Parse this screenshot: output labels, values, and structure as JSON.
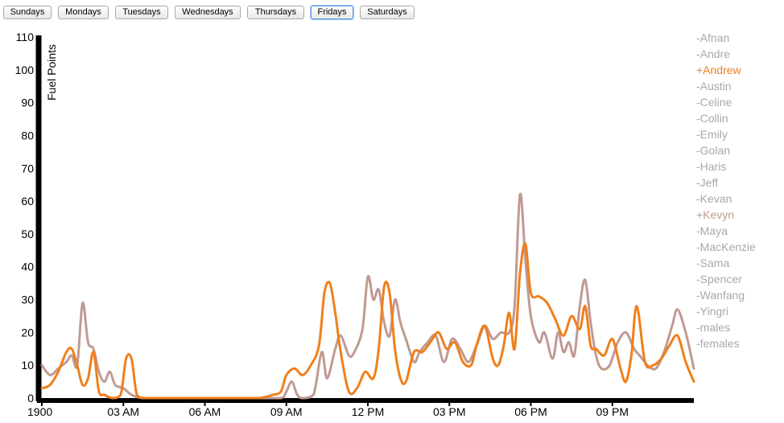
{
  "day_buttons": [
    "Sundays",
    "Mondays",
    "Tuesdays",
    "Wednesdays",
    "Thursdays",
    "Fridays",
    "Saturdays"
  ],
  "active_day": "Fridays",
  "legend": [
    {
      "label": "-Afnan",
      "selected": false
    },
    {
      "label": "-Andre",
      "selected": false
    },
    {
      "label": "+Andrew",
      "selected": true,
      "color": "#f07f1c"
    },
    {
      "label": "-Austin",
      "selected": false
    },
    {
      "label": "-Celine",
      "selected": false
    },
    {
      "label": "-Collin",
      "selected": false
    },
    {
      "label": "-Emily",
      "selected": false
    },
    {
      "label": "-Golan",
      "selected": false
    },
    {
      "label": "-Haris",
      "selected": false
    },
    {
      "label": "-Jeff",
      "selected": false
    },
    {
      "label": "-Kevan",
      "selected": false
    },
    {
      "label": "+Kevyn",
      "selected": true,
      "color": "#c09a92"
    },
    {
      "label": "-Maya",
      "selected": false
    },
    {
      "label": "-MacKenzie",
      "selected": false
    },
    {
      "label": "-Sama",
      "selected": false
    },
    {
      "label": "-Spencer",
      "selected": false
    },
    {
      "label": "-Wanfang",
      "selected": false
    },
    {
      "label": "-Yingri",
      "selected": false
    },
    {
      "label": "-males",
      "selected": false
    },
    {
      "label": "-females",
      "selected": false
    }
  ],
  "chart_data": {
    "type": "line",
    "ylabel": "Fuel Points",
    "ylim": [
      0,
      110
    ],
    "yticks": [
      0,
      10,
      20,
      30,
      40,
      50,
      60,
      70,
      80,
      90,
      100,
      110
    ],
    "xlim": [
      0,
      24
    ],
    "xticks": [
      {
        "x": 0,
        "label": "1900"
      },
      {
        "x": 3,
        "label": "03 AM"
      },
      {
        "x": 6,
        "label": "06 AM"
      },
      {
        "x": 9,
        "label": "09 AM"
      },
      {
        "x": 12,
        "label": "12 PM"
      },
      {
        "x": 15,
        "label": "03 PM"
      },
      {
        "x": 18,
        "label": "06 PM"
      },
      {
        "x": 21,
        "label": "09 PM"
      }
    ],
    "series": [
      {
        "name": "Kevyn",
        "color": "#c09a92",
        "points": [
          [
            0,
            10
          ],
          [
            0.3,
            7
          ],
          [
            0.6,
            9
          ],
          [
            0.9,
            11
          ],
          [
            1.1,
            13
          ],
          [
            1.3,
            10
          ],
          [
            1.5,
            29
          ],
          [
            1.7,
            17
          ],
          [
            1.9,
            15
          ],
          [
            2.1,
            8
          ],
          [
            2.3,
            5
          ],
          [
            2.5,
            8
          ],
          [
            2.7,
            4
          ],
          [
            3.0,
            3
          ],
          [
            3.3,
            1
          ],
          [
            3.7,
            0
          ],
          [
            4.2,
            0
          ],
          [
            5,
            0
          ],
          [
            6,
            0
          ],
          [
            7,
            0
          ],
          [
            8,
            0
          ],
          [
            8.8,
            0
          ],
          [
            9.0,
            2
          ],
          [
            9.2,
            5
          ],
          [
            9.4,
            1
          ],
          [
            9.6,
            0
          ],
          [
            10.0,
            1
          ],
          [
            10.3,
            14
          ],
          [
            10.5,
            6
          ],
          [
            10.8,
            15
          ],
          [
            11.0,
            19
          ],
          [
            11.3,
            13
          ],
          [
            11.5,
            14
          ],
          [
            11.8,
            21
          ],
          [
            12.0,
            37
          ],
          [
            12.2,
            30
          ],
          [
            12.4,
            33
          ],
          [
            12.6,
            23
          ],
          [
            12.8,
            19
          ],
          [
            13.0,
            30
          ],
          [
            13.2,
            23
          ],
          [
            13.4,
            18
          ],
          [
            13.7,
            11
          ],
          [
            13.9,
            14
          ],
          [
            14.2,
            17
          ],
          [
            14.5,
            19
          ],
          [
            14.8,
            11
          ],
          [
            15.1,
            18
          ],
          [
            15.4,
            15
          ],
          [
            15.7,
            11
          ],
          [
            16.0,
            16
          ],
          [
            16.3,
            22
          ],
          [
            16.6,
            18
          ],
          [
            16.9,
            20
          ],
          [
            17.2,
            20
          ],
          [
            17.4,
            28
          ],
          [
            17.6,
            62
          ],
          [
            17.8,
            42
          ],
          [
            18.0,
            25
          ],
          [
            18.3,
            17
          ],
          [
            18.5,
            20
          ],
          [
            18.8,
            12
          ],
          [
            19.0,
            20
          ],
          [
            19.2,
            14
          ],
          [
            19.4,
            17
          ],
          [
            19.6,
            13
          ],
          [
            19.8,
            28
          ],
          [
            20.0,
            36
          ],
          [
            20.2,
            23
          ],
          [
            20.4,
            13
          ],
          [
            20.6,
            9
          ],
          [
            20.9,
            10
          ],
          [
            21.2,
            17
          ],
          [
            21.5,
            20
          ],
          [
            21.8,
            15
          ],
          [
            22.0,
            13
          ],
          [
            22.3,
            10
          ],
          [
            22.6,
            9
          ],
          [
            22.9,
            14
          ],
          [
            23.2,
            22
          ],
          [
            23.4,
            27
          ],
          [
            23.7,
            20
          ],
          [
            24.0,
            9
          ]
        ]
      },
      {
        "name": "Andrew",
        "color": "#f07f1c",
        "points": [
          [
            0,
            3
          ],
          [
            0.3,
            4
          ],
          [
            0.6,
            8
          ],
          [
            0.9,
            14
          ],
          [
            1.1,
            15
          ],
          [
            1.3,
            10
          ],
          [
            1.5,
            4
          ],
          [
            1.7,
            6
          ],
          [
            1.9,
            14
          ],
          [
            2.1,
            2
          ],
          [
            2.3,
            1
          ],
          [
            2.6,
            0
          ],
          [
            2.9,
            1
          ],
          [
            3.1,
            12
          ],
          [
            3.3,
            12
          ],
          [
            3.5,
            1
          ],
          [
            3.8,
            0
          ],
          [
            4.5,
            0
          ],
          [
            5,
            0
          ],
          [
            6,
            0
          ],
          [
            7,
            0
          ],
          [
            8,
            0
          ],
          [
            8.5,
            1
          ],
          [
            8.8,
            2
          ],
          [
            9.0,
            7
          ],
          [
            9.3,
            9
          ],
          [
            9.6,
            7
          ],
          [
            9.9,
            10
          ],
          [
            10.2,
            16
          ],
          [
            10.4,
            32
          ],
          [
            10.6,
            35
          ],
          [
            10.8,
            26
          ],
          [
            11.0,
            14
          ],
          [
            11.3,
            2
          ],
          [
            11.6,
            3
          ],
          [
            11.9,
            8
          ],
          [
            12.2,
            6
          ],
          [
            12.4,
            15
          ],
          [
            12.6,
            34
          ],
          [
            12.8,
            32
          ],
          [
            13.0,
            15
          ],
          [
            13.2,
            6
          ],
          [
            13.4,
            5
          ],
          [
            13.7,
            14
          ],
          [
            14.0,
            14
          ],
          [
            14.3,
            17
          ],
          [
            14.6,
            20
          ],
          [
            14.9,
            15
          ],
          [
            15.2,
            17
          ],
          [
            15.5,
            11
          ],
          [
            15.8,
            10
          ],
          [
            16.0,
            16
          ],
          [
            16.3,
            22
          ],
          [
            16.6,
            12
          ],
          [
            16.8,
            10
          ],
          [
            17.0,
            16
          ],
          [
            17.2,
            26
          ],
          [
            17.4,
            15
          ],
          [
            17.6,
            38
          ],
          [
            17.8,
            47
          ],
          [
            18.0,
            32
          ],
          [
            18.3,
            31
          ],
          [
            18.6,
            29
          ],
          [
            18.9,
            24
          ],
          [
            19.2,
            19
          ],
          [
            19.5,
            25
          ],
          [
            19.8,
            21
          ],
          [
            20.0,
            28
          ],
          [
            20.2,
            16
          ],
          [
            20.4,
            15
          ],
          [
            20.7,
            13
          ],
          [
            21.0,
            18
          ],
          [
            21.3,
            9
          ],
          [
            21.5,
            5
          ],
          [
            21.7,
            13
          ],
          [
            21.9,
            28
          ],
          [
            22.2,
            11
          ],
          [
            22.5,
            10
          ],
          [
            22.8,
            12
          ],
          [
            23.1,
            16
          ],
          [
            23.4,
            19
          ],
          [
            23.7,
            11
          ],
          [
            24.0,
            5
          ]
        ]
      }
    ]
  }
}
